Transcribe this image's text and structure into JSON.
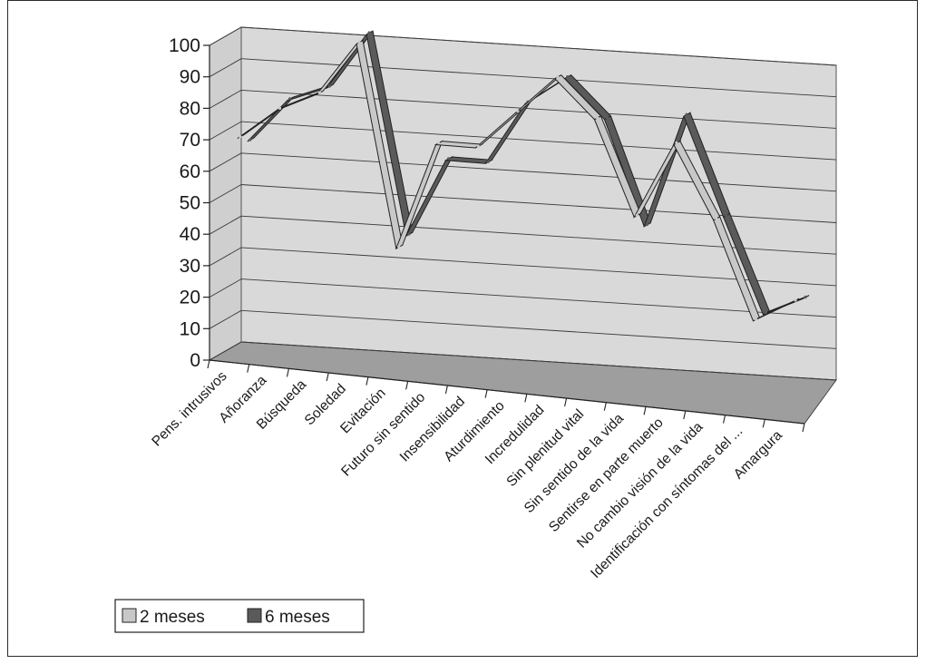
{
  "chart_data": {
    "type": "line",
    "title": "",
    "xlabel": "",
    "ylabel": "",
    "ylim": [
      0,
      100
    ],
    "yticks": [
      0,
      10,
      20,
      30,
      40,
      50,
      60,
      70,
      80,
      90,
      100
    ],
    "grid": true,
    "three_d": true,
    "legend_position": "bottom-left",
    "categories": [
      "Pens. intrusivos",
      "Añoranza",
      "Búsqueda",
      "Soledad",
      "Evitación",
      "Futuro sin sentido",
      "Insensibilidad",
      "Aturdimiento",
      "Incredulidad",
      "Sin plenitud vital",
      "Sin sentido de la vida",
      "Sentirse en parte muerto",
      "No cambio visión de la vida",
      "Identificación con síntomas del ...",
      "Amargura"
    ],
    "series": [
      {
        "name": "2 meses",
        "color": "#c8c8c8",
        "values": [
          69,
          78,
          83,
          99,
          34,
          67,
          66,
          77,
          88,
          75,
          44,
          67,
          43,
          11,
          17
        ]
      },
      {
        "name": "6 meses",
        "color": "#5a5a5a",
        "values": [
          66,
          79,
          83,
          100,
          36,
          60,
          59,
          78,
          86,
          73,
          39,
          74,
          42,
          11,
          16
        ]
      }
    ]
  }
}
